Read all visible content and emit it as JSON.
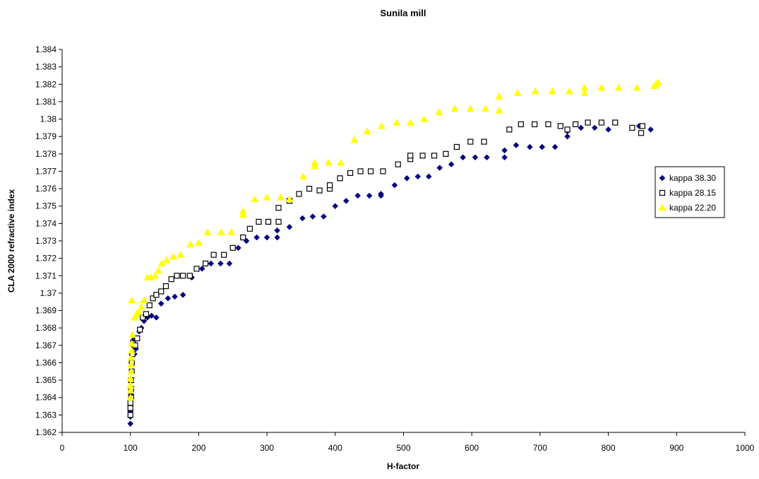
{
  "chart_data": {
    "type": "scatter",
    "title": "Sunila mill",
    "xlabel": "H-factor",
    "ylabel": "CLA 2000 refractive index",
    "xlim": [
      0,
      1000
    ],
    "ylim": [
      1.362,
      1.384
    ],
    "x_ticks": [
      "0",
      "100",
      "200",
      "300",
      "400",
      "500",
      "600",
      "700",
      "800",
      "900",
      "1000"
    ],
    "y_ticks": [
      "1.362",
      "1.363",
      "1.364",
      "1.365",
      "1.366",
      "1.367",
      "1.368",
      "1.369",
      "1.37",
      "1.371",
      "1.372",
      "1.373",
      "1.374",
      "1.375",
      "1.376",
      "1.377",
      "1.378",
      "1.379",
      "1.38",
      "1.381",
      "1.382",
      "1.383",
      "1.384"
    ],
    "grid": false,
    "legend_position": "right",
    "series": [
      {
        "name": "kappa 38.30",
        "color": "#000080",
        "marker": "diamond",
        "points": [
          [
            100,
            1.3625
          ],
          [
            100,
            1.3629
          ],
          [
            100,
            1.3632
          ],
          [
            100,
            1.3635
          ],
          [
            100,
            1.3638
          ],
          [
            101,
            1.3642
          ],
          [
            101,
            1.3646
          ],
          [
            101,
            1.365
          ],
          [
            102,
            1.3655
          ],
          [
            102,
            1.366
          ],
          [
            102,
            1.3665
          ],
          [
            103,
            1.367
          ],
          [
            104,
            1.3673
          ],
          [
            106,
            1.3665
          ],
          [
            108,
            1.3668
          ],
          [
            110,
            1.3674
          ],
          [
            113,
            1.3678
          ],
          [
            116,
            1.368
          ],
          [
            120,
            1.3684
          ],
          [
            125,
            1.3686
          ],
          [
            131,
            1.3687
          ],
          [
            138,
            1.3686
          ],
          [
            145,
            1.3694
          ],
          [
            155,
            1.3697
          ],
          [
            165,
            1.3698
          ],
          [
            177,
            1.3699
          ],
          [
            190,
            1.3709
          ],
          [
            205,
            1.3714
          ],
          [
            218,
            1.3717
          ],
          [
            232,
            1.3717
          ],
          [
            245,
            1.3717
          ],
          [
            258,
            1.3726
          ],
          [
            270,
            1.373
          ],
          [
            285,
            1.3732
          ],
          [
            300,
            1.3732
          ],
          [
            315,
            1.3732
          ],
          [
            315,
            1.3736
          ],
          [
            333,
            1.3738
          ],
          [
            352,
            1.3743
          ],
          [
            367,
            1.3744
          ],
          [
            383,
            1.3744
          ],
          [
            400,
            1.375
          ],
          [
            416,
            1.3753
          ],
          [
            433,
            1.3756
          ],
          [
            450,
            1.3756
          ],
          [
            467,
            1.3756
          ],
          [
            467,
            1.3757
          ],
          [
            487,
            1.3762
          ],
          [
            505,
            1.3766
          ],
          [
            521,
            1.3767
          ],
          [
            537,
            1.3767
          ],
          [
            553,
            1.3772
          ],
          [
            570,
            1.3774
          ],
          [
            587,
            1.3778
          ],
          [
            605,
            1.3778
          ],
          [
            622,
            1.3778
          ],
          [
            648,
            1.3778
          ],
          [
            648,
            1.3782
          ],
          [
            665,
            1.3785
          ],
          [
            685,
            1.3784
          ],
          [
            703,
            1.3784
          ],
          [
            722,
            1.3784
          ],
          [
            740,
            1.379
          ],
          [
            740,
            1.3793
          ],
          [
            760,
            1.3795
          ],
          [
            780,
            1.3795
          ],
          [
            800,
            1.3794
          ],
          [
            845,
            1.3796
          ],
          [
            862,
            1.3794
          ]
        ]
      },
      {
        "name": "kappa 28.15",
        "color": "#000000",
        "marker": "square-open",
        "points": [
          [
            100,
            1.363
          ],
          [
            100,
            1.3634
          ],
          [
            100,
            1.3637
          ],
          [
            101,
            1.364
          ],
          [
            101,
            1.3645
          ],
          [
            101,
            1.365
          ],
          [
            102,
            1.3655
          ],
          [
            102,
            1.366
          ],
          [
            103,
            1.3665
          ],
          [
            104,
            1.3671
          ],
          [
            107,
            1.367
          ],
          [
            110,
            1.3674
          ],
          [
            114,
            1.3679
          ],
          [
            118,
            1.3686
          ],
          [
            123,
            1.3688
          ],
          [
            128,
            1.3693
          ],
          [
            133,
            1.3697
          ],
          [
            138,
            1.3699
          ],
          [
            145,
            1.3701
          ],
          [
            152,
            1.3704
          ],
          [
            160,
            1.3708
          ],
          [
            168,
            1.371
          ],
          [
            177,
            1.371
          ],
          [
            187,
            1.371
          ],
          [
            197,
            1.3714
          ],
          [
            210,
            1.3717
          ],
          [
            222,
            1.3722
          ],
          [
            237,
            1.3722
          ],
          [
            250,
            1.3726
          ],
          [
            265,
            1.3732
          ],
          [
            275,
            1.3737
          ],
          [
            288,
            1.3741
          ],
          [
            302,
            1.3741
          ],
          [
            317,
            1.3741
          ],
          [
            317,
            1.3749
          ],
          [
            333,
            1.3753
          ],
          [
            347,
            1.3757
          ],
          [
            362,
            1.376
          ],
          [
            377,
            1.3759
          ],
          [
            392,
            1.376
          ],
          [
            392,
            1.3762
          ],
          [
            407,
            1.3766
          ],
          [
            422,
            1.3769
          ],
          [
            437,
            1.377
          ],
          [
            452,
            1.377
          ],
          [
            470,
            1.377
          ],
          [
            492,
            1.3774
          ],
          [
            510,
            1.3777
          ],
          [
            510,
            1.3779
          ],
          [
            528,
            1.3779
          ],
          [
            545,
            1.3779
          ],
          [
            562,
            1.378
          ],
          [
            578,
            1.3784
          ],
          [
            598,
            1.3787
          ],
          [
            618,
            1.3787
          ],
          [
            655,
            1.3794
          ],
          [
            672,
            1.3797
          ],
          [
            692,
            1.3797
          ],
          [
            712,
            1.3797
          ],
          [
            730,
            1.3796
          ],
          [
            740,
            1.3794
          ],
          [
            752,
            1.3797
          ],
          [
            770,
            1.3798
          ],
          [
            790,
            1.3798
          ],
          [
            810,
            1.3798
          ],
          [
            835,
            1.3795
          ],
          [
            848,
            1.3792
          ],
          [
            850,
            1.3796
          ]
        ]
      },
      {
        "name": "kappa 22.20",
        "color": "#ffff00",
        "marker": "triangle",
        "points": [
          [
            100,
            1.364
          ],
          [
            100,
            1.3644
          ],
          [
            100,
            1.3647
          ],
          [
            100,
            1.3651
          ],
          [
            101,
            1.3655
          ],
          [
            101,
            1.3659
          ],
          [
            101,
            1.3663
          ],
          [
            102,
            1.3667
          ],
          [
            102,
            1.3671
          ],
          [
            103,
            1.3676
          ],
          [
            102,
            1.3696
          ],
          [
            106,
            1.3686
          ],
          [
            109,
            1.3688
          ],
          [
            112,
            1.3689
          ],
          [
            116,
            1.3692
          ],
          [
            120,
            1.3696
          ],
          [
            125,
            1.3709
          ],
          [
            130,
            1.3709
          ],
          [
            136,
            1.371
          ],
          [
            141,
            1.3713
          ],
          [
            146,
            1.3717
          ],
          [
            153,
            1.3719
          ],
          [
            163,
            1.3721
          ],
          [
            173,
            1.3722
          ],
          [
            188,
            1.3728
          ],
          [
            200,
            1.3729
          ],
          [
            213,
            1.3735
          ],
          [
            233,
            1.3735
          ],
          [
            248,
            1.3735
          ],
          [
            265,
            1.3745
          ],
          [
            265,
            1.3747
          ],
          [
            282,
            1.3754
          ],
          [
            300,
            1.3755
          ],
          [
            320,
            1.3755
          ],
          [
            333,
            1.3754
          ],
          [
            353,
            1.3767
          ],
          [
            370,
            1.3773
          ],
          [
            370,
            1.3775
          ],
          [
            390,
            1.3775
          ],
          [
            408,
            1.3775
          ],
          [
            428,
            1.3788
          ],
          [
            447,
            1.3793
          ],
          [
            468,
            1.3796
          ],
          [
            490,
            1.3798
          ],
          [
            510,
            1.3798
          ],
          [
            530,
            1.38
          ],
          [
            552,
            1.3804
          ],
          [
            575,
            1.3806
          ],
          [
            598,
            1.3806
          ],
          [
            620,
            1.3806
          ],
          [
            640,
            1.3805
          ],
          [
            640,
            1.3813
          ],
          [
            667,
            1.3815
          ],
          [
            693,
            1.3816
          ],
          [
            718,
            1.3816
          ],
          [
            743,
            1.3816
          ],
          [
            765,
            1.3815
          ],
          [
            765,
            1.3818
          ],
          [
            790,
            1.3818
          ],
          [
            815,
            1.3818
          ],
          [
            842,
            1.3818
          ],
          [
            867,
            1.3819
          ],
          [
            870,
            1.382
          ],
          [
            873,
            1.3821
          ]
        ]
      }
    ]
  }
}
